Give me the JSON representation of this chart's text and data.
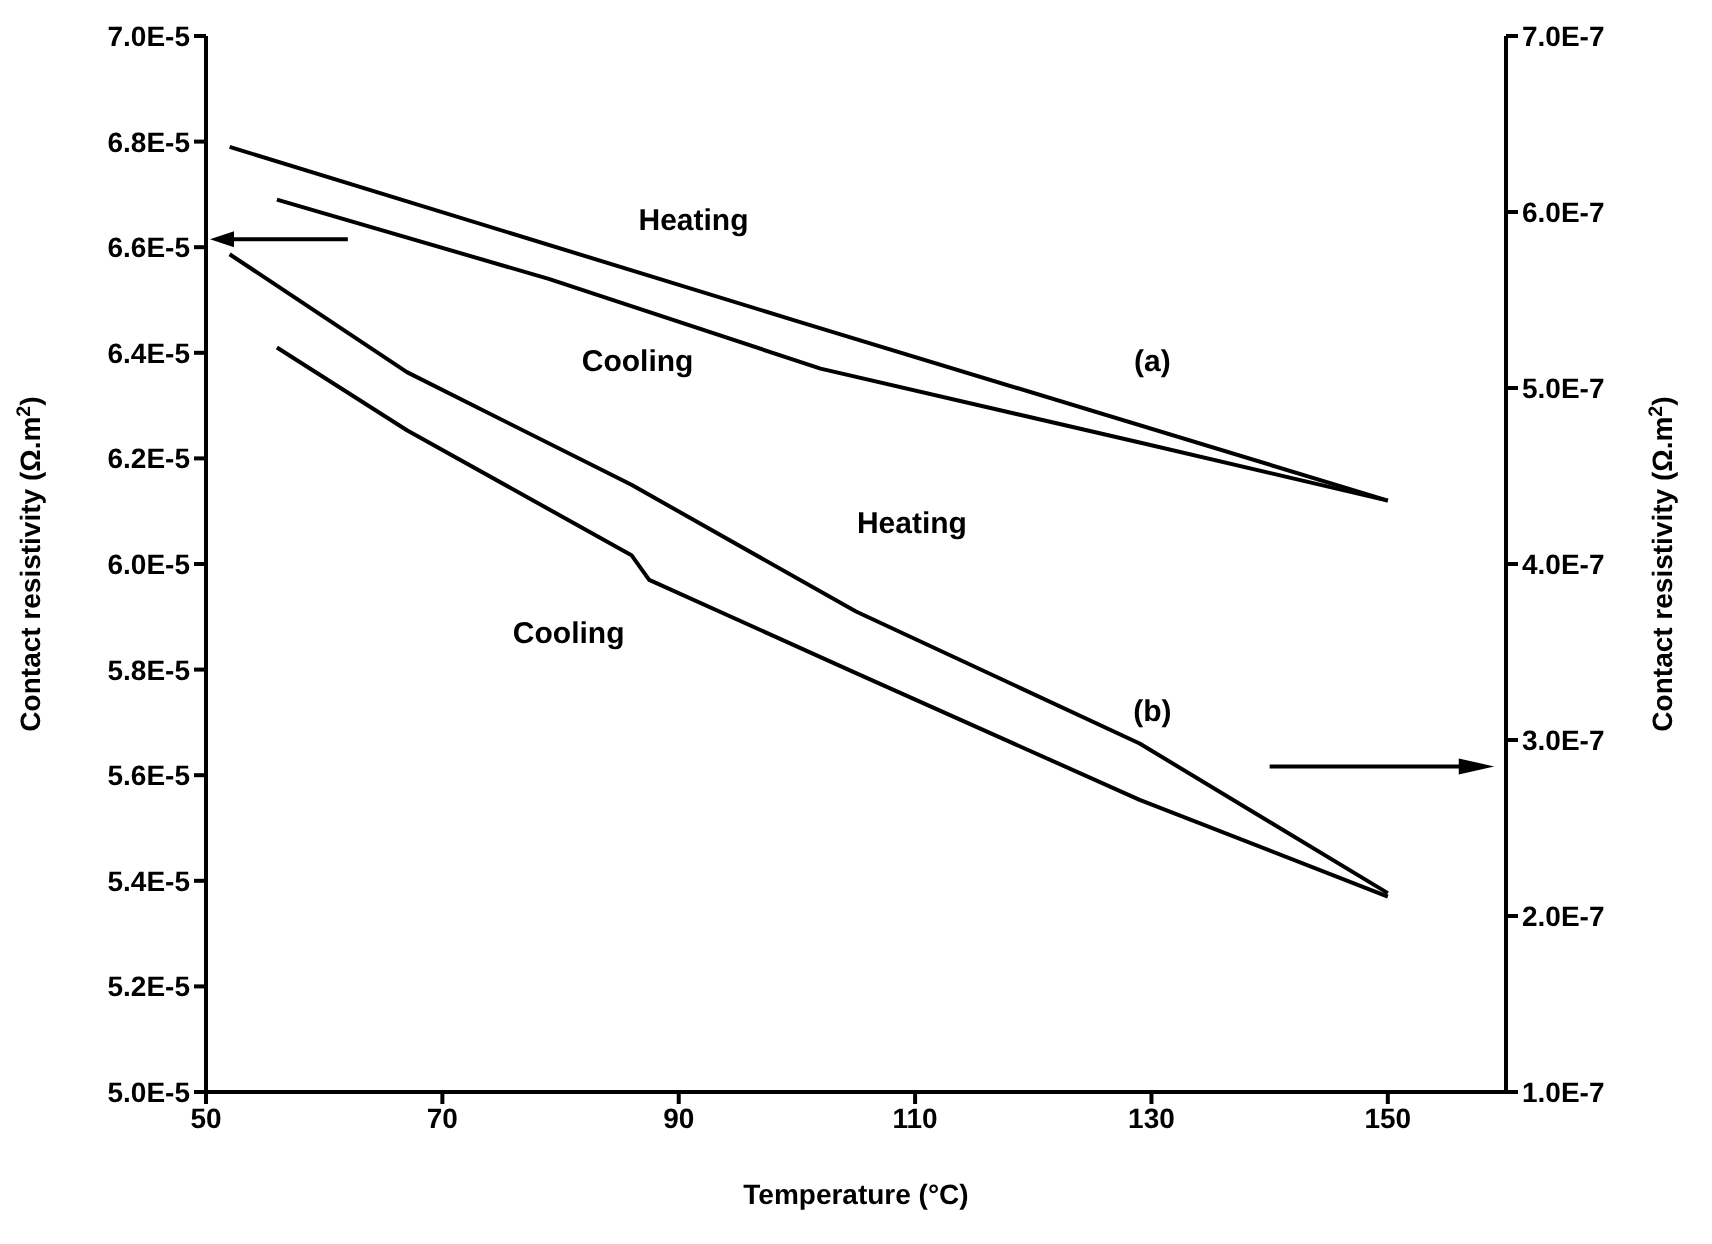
{
  "chart_data": {
    "type": "line",
    "xlabel": "Temperature (°C)",
    "ylabel": "Contact resistivity (Ω.m$^{2}$)",
    "y2label": "Contact resistivity (Ω.m$^{2}$)",
    "xlim": [
      50,
      160
    ],
    "xticks": [
      50,
      70,
      90,
      110,
      130,
      150
    ],
    "ylim": [
      5e-05,
      7e-05
    ],
    "yticks": [
      {
        "value": 5e-05,
        "label": "5.0E-5"
      },
      {
        "value": 5.2e-05,
        "label": "5.2E-5"
      },
      {
        "value": 5.4e-05,
        "label": "5.4E-5"
      },
      {
        "value": 5.6e-05,
        "label": "5.6E-5"
      },
      {
        "value": 5.8e-05,
        "label": "5.8E-5"
      },
      {
        "value": 6e-05,
        "label": "6.0E-5"
      },
      {
        "value": 6.2e-05,
        "label": "6.2E-5"
      },
      {
        "value": 6.4e-05,
        "label": "6.4E-5"
      },
      {
        "value": 6.6e-05,
        "label": "6.6E-5"
      },
      {
        "value": 6.8e-05,
        "label": "6.8E-5"
      },
      {
        "value": 7e-05,
        "label": "7.0E-5"
      }
    ],
    "y2lim": [
      1e-07,
      7e-07
    ],
    "y2ticks": [
      {
        "value": 1e-07,
        "label": "1.0E-7"
      },
      {
        "value": 2e-07,
        "label": "2.0E-7"
      },
      {
        "value": 3e-07,
        "label": "3.0E-7"
      },
      {
        "value": 4e-07,
        "label": "4.0E-7"
      },
      {
        "value": 5e-07,
        "label": "5.0E-7"
      },
      {
        "value": 6e-07,
        "label": "6.0E-7"
      },
      {
        "value": 7e-07,
        "label": "7.0E-7"
      }
    ],
    "grid": false,
    "marker": "none",
    "line_style": "solid",
    "series": [
      {
        "color": "#000000",
        "x": [
          52,
          100,
          150
        ],
        "values": [
          6.79e-05,
          6.46e-05,
          6.12e-05
        ]
      },
      {
        "color": "#000000",
        "x": [
          56,
          79,
          102,
          129,
          150
        ],
        "values": [
          6.69e-05,
          6.54e-05,
          6.37e-05,
          6.23e-05,
          6.12e-05
        ]
      },
      {
        "color": "#000000",
        "axis": "y2",
        "x": [
          52,
          67,
          86,
          105,
          129,
          150
        ],
        "values": [
          5.76e-07,
          5.09e-07,
          4.45e-07,
          3.73e-07,
          2.98e-07,
          2.13e-07
        ]
      },
      {
        "color": "#000000",
        "axis": "y2",
        "x": [
          56,
          67,
          86,
          87.5,
          105,
          129,
          150
        ],
        "values": [
          5.23e-07,
          4.76e-07,
          4.05e-07,
          3.91e-07,
          3.38e-07,
          2.66e-07,
          2.11e-07
        ]
      }
    ],
    "annotations": [
      "Heating",
      "Cooling",
      "(a)",
      "Heating",
      "Cooling",
      "(b)"
    ]
  }
}
